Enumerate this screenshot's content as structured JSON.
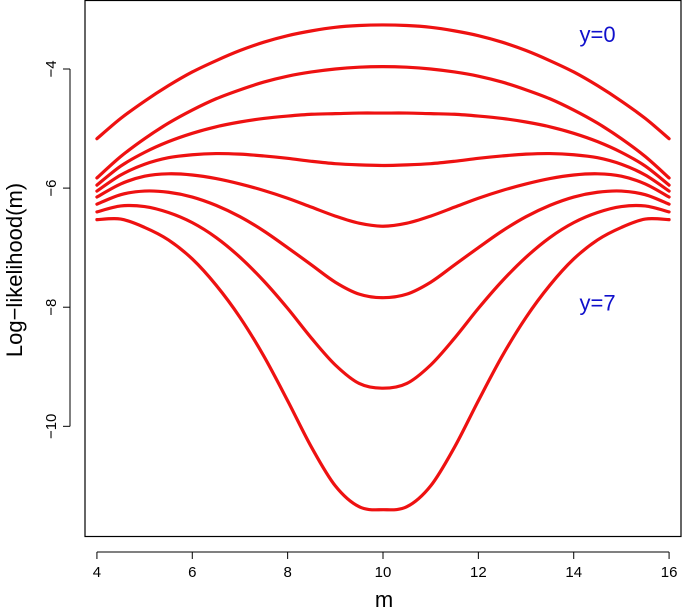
{
  "chart_data": {
    "type": "line",
    "title": "",
    "xlabel": "m",
    "ylabel": "Log−likelihood(m)",
    "xlim": [
      3.75,
      16.25
    ],
    "ylim": [
      -11.85,
      -2.85
    ],
    "x_ticks": [
      4,
      6,
      8,
      10,
      12,
      14,
      16
    ],
    "x_tick_labels": [
      "4",
      "6",
      "8",
      "10",
      "12",
      "14",
      "16"
    ],
    "y_ticks": [
      -10,
      -8,
      -6,
      -4
    ],
    "y_tick_labels": [
      "−10",
      "−8",
      "−6",
      "−4"
    ],
    "grid": false,
    "legend": null,
    "line_color": "#ee1111",
    "annotation_color": "#1010cc",
    "x": [
      4,
      4.5,
      5,
      5.5,
      6,
      6.5,
      7,
      7.5,
      8,
      8.5,
      9,
      9.5,
      10,
      10.5,
      11,
      11.5,
      12,
      12.5,
      13,
      13.5,
      14,
      14.5,
      15,
      15.5,
      16
    ],
    "series": [
      {
        "values": [
          -5.17,
          -4.83,
          -4.54,
          -4.28,
          -4.05,
          -3.86,
          -3.69,
          -3.55,
          -3.44,
          -3.36,
          -3.3,
          -3.27,
          -3.26,
          -3.27,
          -3.3,
          -3.36,
          -3.44,
          -3.55,
          -3.69,
          -3.86,
          -4.05,
          -4.28,
          -4.54,
          -4.83,
          -5.17
        ]
      },
      {
        "values": [
          -5.83,
          -5.47,
          -5.17,
          -4.91,
          -4.69,
          -4.5,
          -4.35,
          -4.22,
          -4.12,
          -4.05,
          -4.0,
          -3.97,
          -3.96,
          -3.97,
          -4.0,
          -4.05,
          -4.12,
          -4.22,
          -4.35,
          -4.5,
          -4.69,
          -4.91,
          -5.17,
          -5.47,
          -5.83
        ]
      },
      {
        "values": [
          -5.95,
          -5.63,
          -5.4,
          -5.22,
          -5.08,
          -4.97,
          -4.89,
          -4.83,
          -4.79,
          -4.76,
          -4.75,
          -4.74,
          -4.74,
          -4.74,
          -4.75,
          -4.76,
          -4.79,
          -4.83,
          -4.89,
          -4.97,
          -5.08,
          -5.22,
          -5.4,
          -5.63,
          -5.95
        ]
      },
      {
        "values": [
          -6.05,
          -5.78,
          -5.6,
          -5.49,
          -5.44,
          -5.42,
          -5.43,
          -5.46,
          -5.5,
          -5.55,
          -5.59,
          -5.61,
          -5.62,
          -5.61,
          -5.59,
          -5.55,
          -5.5,
          -5.46,
          -5.43,
          -5.42,
          -5.44,
          -5.49,
          -5.6,
          -5.78,
          -6.05
        ]
      },
      {
        "values": [
          -6.15,
          -5.93,
          -5.8,
          -5.76,
          -5.78,
          -5.84,
          -5.93,
          -6.04,
          -6.17,
          -6.32,
          -6.47,
          -6.59,
          -6.64,
          -6.59,
          -6.47,
          -6.32,
          -6.17,
          -6.04,
          -5.93,
          -5.84,
          -5.78,
          -5.76,
          -5.8,
          -5.93,
          -6.15
        ]
      },
      {
        "values": [
          -6.27,
          -6.11,
          -6.05,
          -6.07,
          -6.15,
          -6.29,
          -6.48,
          -6.72,
          -7.0,
          -7.29,
          -7.58,
          -7.78,
          -7.84,
          -7.78,
          -7.58,
          -7.29,
          -7.0,
          -6.72,
          -6.48,
          -6.29,
          -6.15,
          -6.07,
          -6.05,
          -6.11,
          -6.27
        ]
      },
      {
        "values": [
          -6.4,
          -6.3,
          -6.31,
          -6.41,
          -6.58,
          -6.83,
          -7.16,
          -7.56,
          -8.02,
          -8.52,
          -8.97,
          -9.28,
          -9.36,
          -9.28,
          -8.97,
          -8.52,
          -8.02,
          -7.56,
          -7.16,
          -6.83,
          -6.58,
          -6.41,
          -6.31,
          -6.3,
          -6.4
        ]
      },
      {
        "values": [
          -6.53,
          -6.52,
          -6.66,
          -6.87,
          -7.19,
          -7.63,
          -8.17,
          -8.82,
          -9.57,
          -10.35,
          -11.0,
          -11.35,
          -11.4,
          -11.35,
          -11.0,
          -10.35,
          -9.57,
          -8.82,
          -8.17,
          -7.63,
          -7.19,
          -6.87,
          -6.66,
          -6.52,
          -6.53
        ]
      }
    ],
    "annotations": [
      {
        "text": "y=0",
        "x": 14.5,
        "y": -3.45
      },
      {
        "text": "y=7",
        "x": 14.5,
        "y": -7.96
      }
    ]
  }
}
